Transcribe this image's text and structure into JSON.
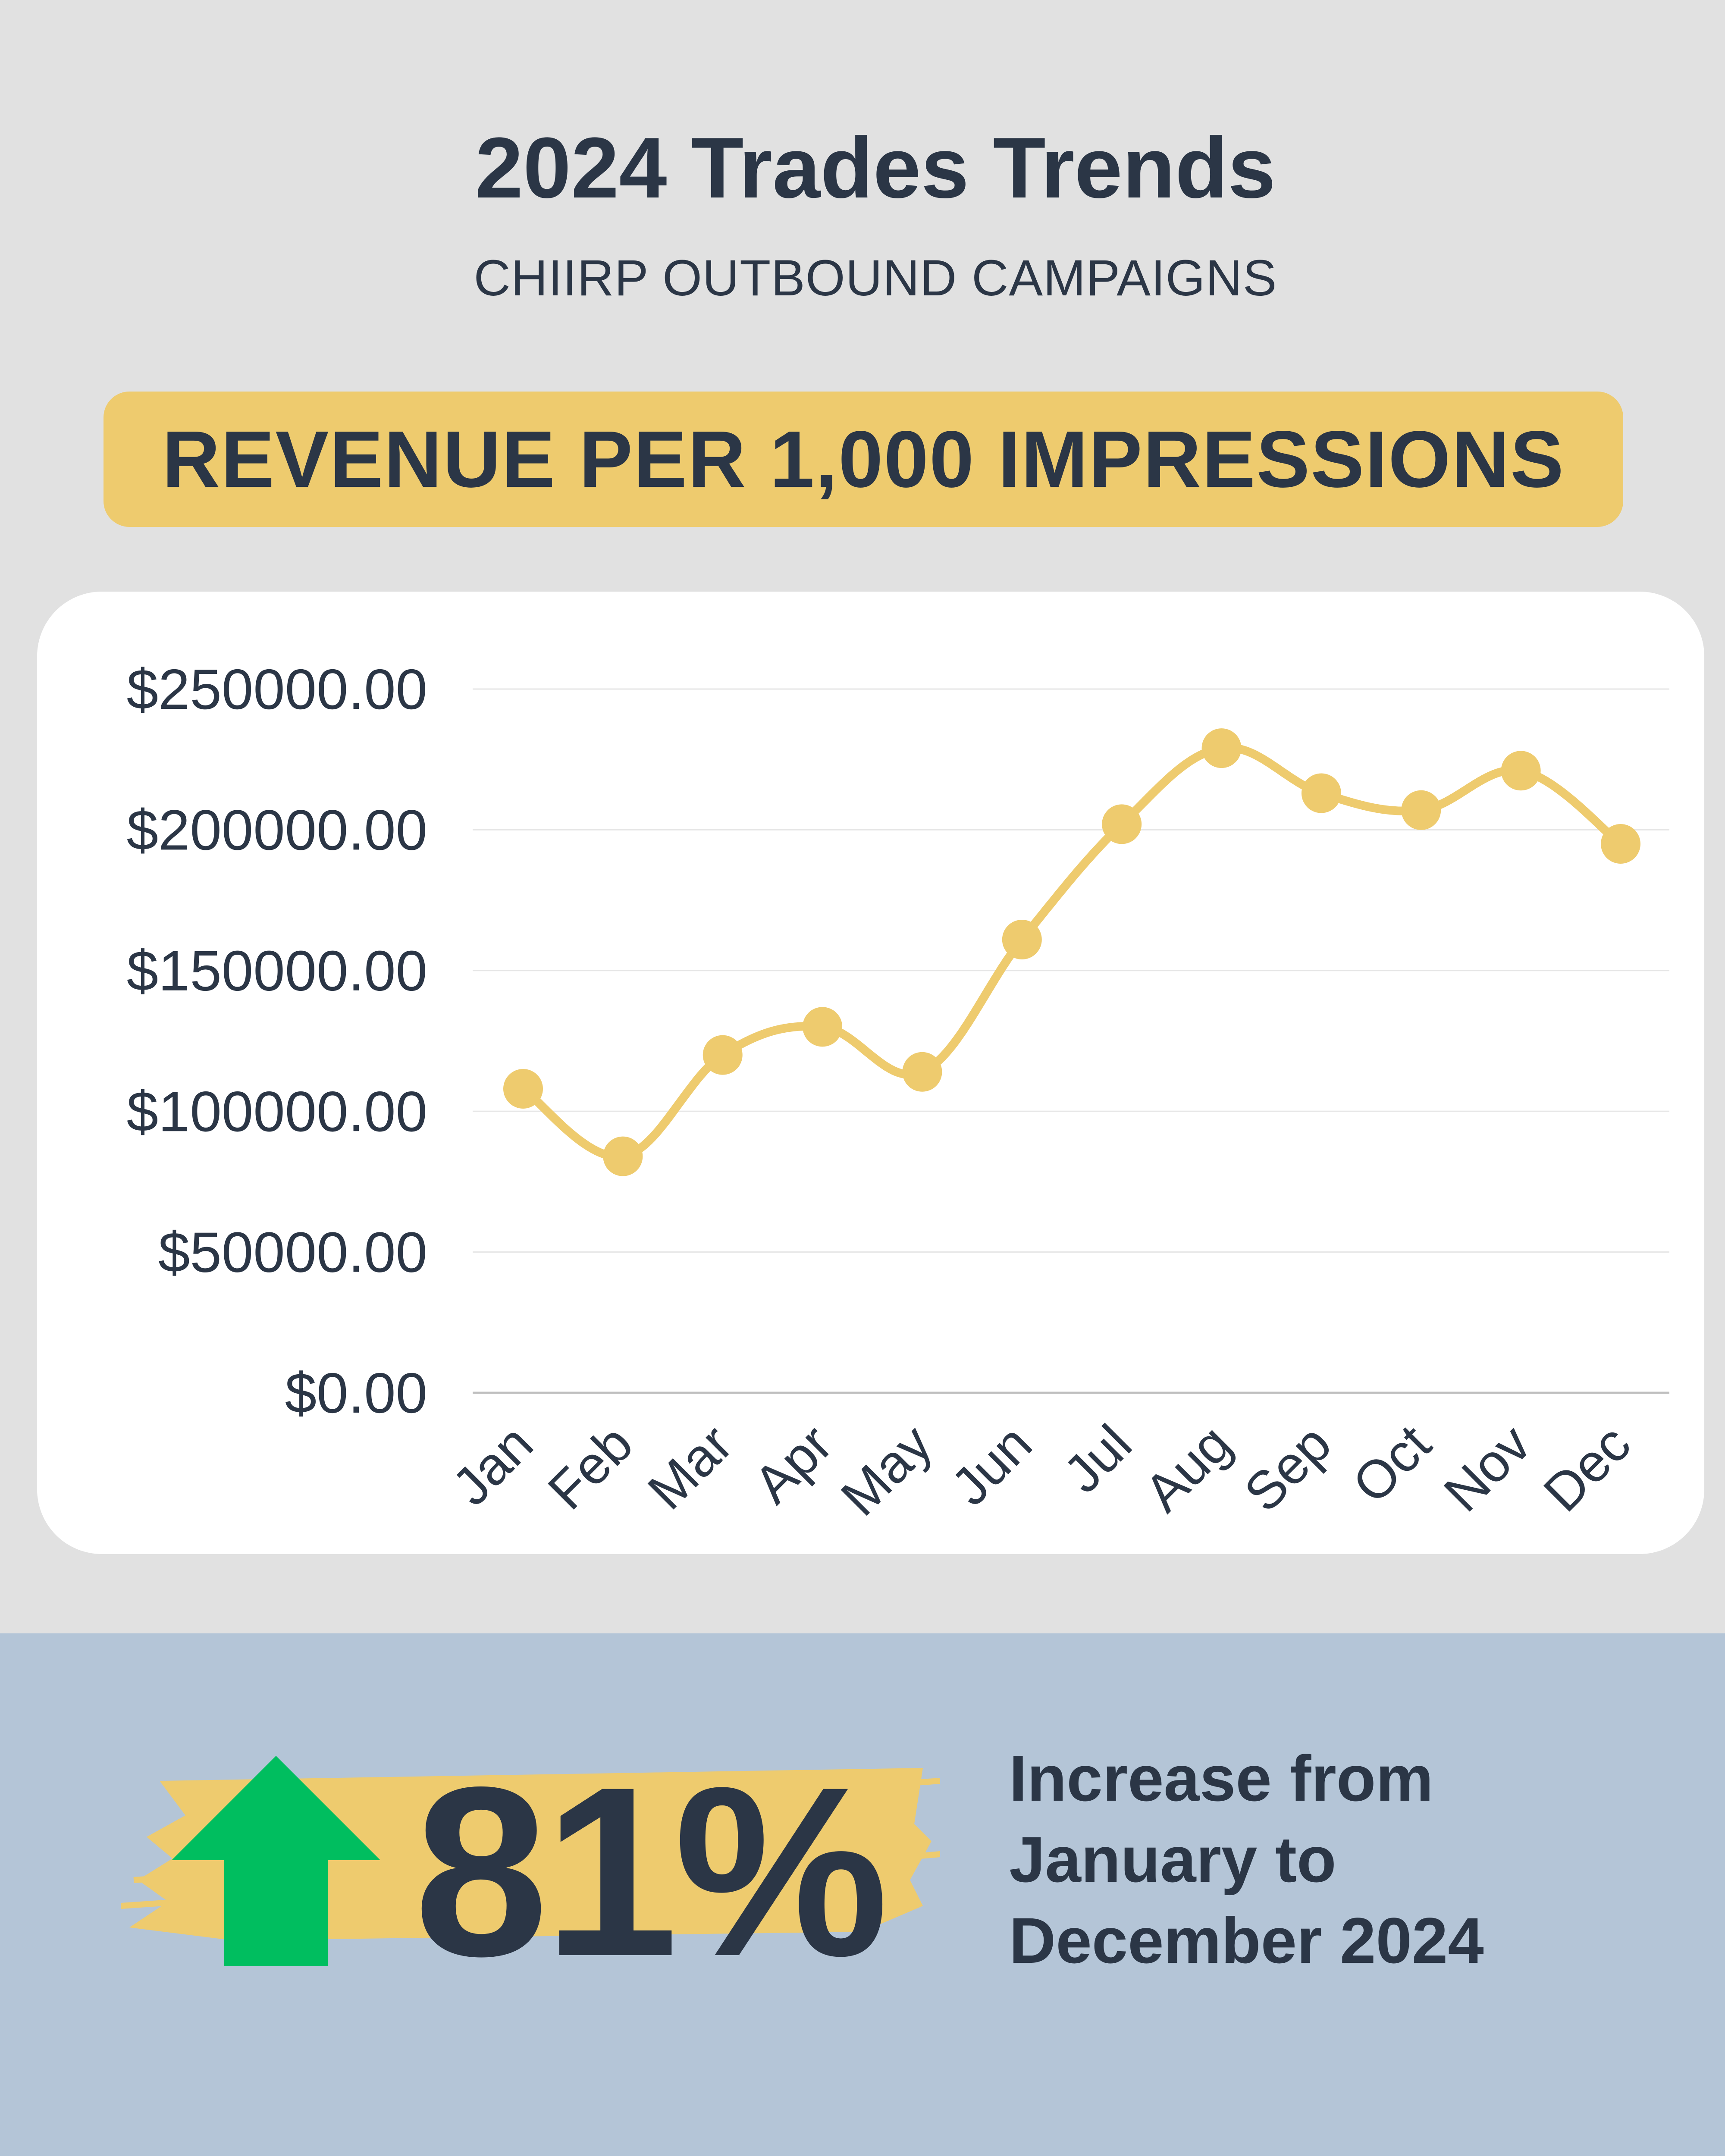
{
  "header": {
    "title": "2024 Trades Trends",
    "subtitle": "CHIIRP OUTBOUND CAMPAIGNS",
    "pill": "REVENUE PER 1,000 IMPRESSIONS"
  },
  "colors": {
    "accent": "#eecb6e",
    "text": "#2b3646",
    "page_bg": "#e1e1e1",
    "bottom_bg": "#b4c5d7",
    "arrow": "#00be5f"
  },
  "chart_data": {
    "type": "line",
    "categories": [
      "Jan",
      "Feb",
      "Mar",
      "Apr",
      "May",
      "Jun",
      "Jul",
      "Aug",
      "Sep",
      "Oct",
      "Nov",
      "Dec"
    ],
    "series": [
      {
        "values": [
          108000,
          84000,
          120000,
          130000,
          114000,
          161000,
          202000,
          229000,
          213000,
          207000,
          221000,
          195000
        ]
      }
    ],
    "yticks": [
      "$0.00",
      "$50000.00",
      "$100000.00",
      "$150000.00",
      "$200000.00",
      "$250000.00"
    ],
    "ylim": [
      0,
      250000
    ],
    "grid": true,
    "smooth": true,
    "markers": true
  },
  "stat": {
    "value": "81%",
    "caption_lines": [
      "Increase from",
      "January to",
      "December 2024"
    ],
    "arrow_icon": "up-arrow-icon"
  }
}
